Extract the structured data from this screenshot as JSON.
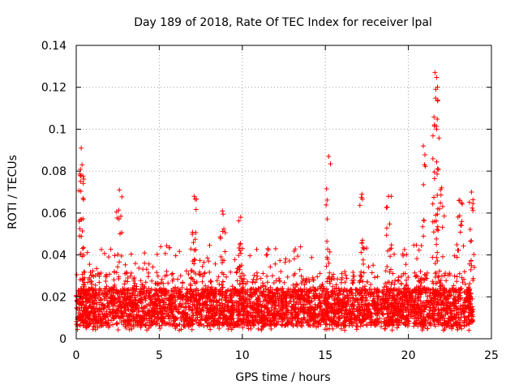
{
  "chart_data": {
    "type": "scatter",
    "title": "Day 189 of 2018, Rate Of TEC Index for receiver lpal",
    "xlabel": "GPS time / hours",
    "ylabel": "ROTI / TECUs",
    "xlim": [
      0,
      25
    ],
    "ylim": [
      0,
      0.14
    ],
    "xticks": [
      0,
      5,
      10,
      15,
      20,
      25
    ],
    "xtick_labels": [
      "0",
      "5",
      "10",
      "15",
      "20",
      "25"
    ],
    "yticks": [
      0,
      0.02,
      0.04,
      0.06,
      0.08,
      0.1,
      0.12,
      0.14
    ],
    "ytick_labels": [
      "0",
      "0.02",
      "0.04",
      "0.06",
      "0.08",
      "0.1",
      "0.12",
      "0.14"
    ],
    "grid": true,
    "marker": "+",
    "color": "#ff0000",
    "x_range_of_data": [
      0,
      23.9
    ],
    "typical_value_range": [
      0.005,
      0.03
    ],
    "notable_peaks": [
      {
        "x": 0.3,
        "y": 0.091
      },
      {
        "x": 0.35,
        "y": 0.083
      },
      {
        "x": 2.6,
        "y": 0.071
      },
      {
        "x": 7.1,
        "y": 0.068
      },
      {
        "x": 8.8,
        "y": 0.061
      },
      {
        "x": 9.9,
        "y": 0.058
      },
      {
        "x": 15.2,
        "y": 0.087
      },
      {
        "x": 17.2,
        "y": 0.069
      },
      {
        "x": 18.8,
        "y": 0.068
      },
      {
        "x": 20.9,
        "y": 0.092
      },
      {
        "x": 21.6,
        "y": 0.127
      },
      {
        "x": 21.65,
        "y": 0.119
      },
      {
        "x": 21.7,
        "y": 0.1
      },
      {
        "x": 22.0,
        "y": 0.072
      },
      {
        "x": 23.1,
        "y": 0.066
      },
      {
        "x": 23.8,
        "y": 0.07
      }
    ]
  }
}
